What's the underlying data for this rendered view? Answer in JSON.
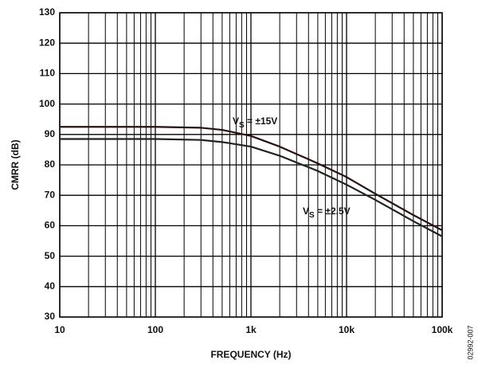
{
  "chart_data": {
    "type": "line",
    "x_label": "FREQUENCY (Hz)",
    "y_label": "CMRR (dB)",
    "x": [
      10,
      100,
      300,
      500,
      1000,
      2000,
      5000,
      10000,
      20000,
      50000,
      100000
    ],
    "series": [
      {
        "color": "#2a1010",
        "values": [
          92.5,
          92.5,
          92.2,
          91.5,
          89.5,
          86,
          80.5,
          76,
          70.5,
          63.5,
          58.5
        ]
      },
      {
        "color": "#222222",
        "values": [
          88.5,
          88.5,
          88.2,
          87.5,
          86,
          83,
          78,
          73.5,
          68.5,
          61.5,
          56.5
        ]
      }
    ],
    "annotations": [
      {
        "text": "V",
        "subscript": "S",
        "rest": " = ±15V"
      },
      {
        "text": "V",
        "subscript": "S",
        "rest": " = ±2.5V"
      }
    ],
    "figure_id": "02992-007",
    "log_x": true,
    "xlim": [
      10,
      100000
    ],
    "xticks": [
      10,
      100,
      {
        "value": 1000,
        "label": "1k"
      },
      {
        "value": 10000,
        "label": "10k"
      },
      {
        "value": 100000,
        "label": "100k"
      }
    ],
    "xminorticks": [
      20,
      30,
      40,
      50,
      60,
      70,
      80,
      90,
      200,
      300,
      400,
      500,
      600,
      700,
      800,
      900,
      2000,
      3000,
      4000,
      5000,
      6000,
      7000,
      8000,
      9000,
      20000,
      30000,
      40000,
      50000,
      60000,
      70000,
      80000,
      90000
    ],
    "ylim": [
      30,
      130
    ],
    "yticks": [
      30,
      40,
      50,
      60,
      70,
      80,
      90,
      100,
      110,
      120,
      130
    ],
    "grid": true
  }
}
